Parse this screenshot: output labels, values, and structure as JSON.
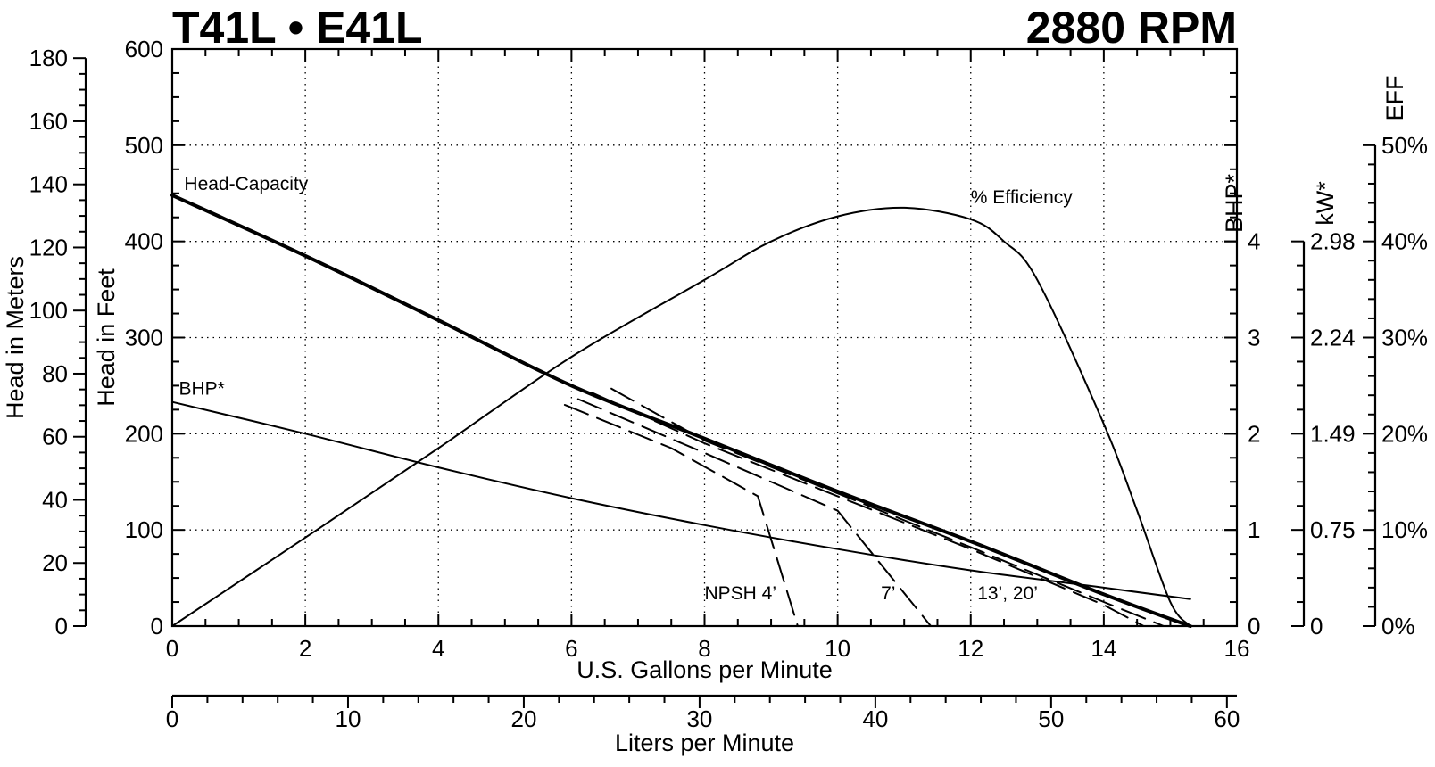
{
  "header": {
    "title_left": "T41L • E41L",
    "title_right": "2880 RPM"
  },
  "chart_data": {
    "type": "line",
    "title": "T41L • E41L",
    "subtitle": "2880 RPM",
    "xlabel": "U.S. Gallons per Minute",
    "x2label": "Liters per Minute",
    "ylabel": "Head in Feet",
    "y2label": "Head in Meters",
    "bhp_label": "BHP*",
    "kw_label": "kW*",
    "eff_label": "EFF",
    "xlim": [
      0,
      16
    ],
    "ylim": [
      0,
      600
    ],
    "grid": true,
    "x_ticks": [
      "0",
      "2",
      "4",
      "6",
      "8",
      "10",
      "12",
      "14",
      "16"
    ],
    "y_ticks": [
      "0",
      "100",
      "200",
      "300",
      "400",
      "500",
      "600"
    ],
    "meters_ticks": [
      "0",
      "20",
      "40",
      "60",
      "80",
      "100",
      "120",
      "140",
      "160",
      "180"
    ],
    "lpm_ticks": [
      "0",
      "10",
      "20",
      "30",
      "40",
      "50",
      "60"
    ],
    "bhp_ticks": [
      "0",
      "1",
      "2",
      "3",
      "4"
    ],
    "kw_ticks": [
      "0",
      "0.75",
      "1.49",
      "2.24",
      "2.98"
    ],
    "eff_ticks": [
      "0%",
      "10%",
      "20%",
      "30%",
      "40%",
      "50%"
    ],
    "series": [
      {
        "name": "Head-Capacity",
        "units": "feet",
        "x": [
          0,
          2,
          4,
          6,
          8,
          10,
          12,
          14,
          15.3
        ],
        "y": [
          448,
          385,
          318,
          250,
          195,
          140,
          88,
          33,
          0
        ]
      },
      {
        "name": "% Efficiency",
        "units": "percent",
        "x": [
          0,
          2,
          4,
          6,
          8,
          9,
          10,
          11,
          12,
          12.5,
          13,
          14,
          14.5,
          15,
          15.3
        ],
        "y": [
          0,
          9.2,
          18.5,
          28,
          36,
          40,
          42.6,
          43.5,
          42.3,
          40,
          36,
          21,
          12,
          2.5,
          0
        ]
      },
      {
        "name": "BHP*",
        "units": "bhp",
        "x": [
          0,
          2,
          4,
          6,
          8,
          10,
          12,
          14,
          15.3
        ],
        "y": [
          2.33,
          2.0,
          1.65,
          1.33,
          1.05,
          0.8,
          0.58,
          0.4,
          0.28
        ]
      },
      {
        "name": "NPSH 4’",
        "units": "feet",
        "x": [
          5.9,
          7.5,
          8.8,
          9.4
        ],
        "y": [
          230,
          185,
          135,
          0
        ]
      },
      {
        "name": "7’",
        "units": "feet",
        "x": [
          6.1,
          8,
          10,
          11.4
        ],
        "y": [
          236,
          180,
          120,
          0
        ]
      },
      {
        "name": "13’, 20’",
        "units": "feet",
        "x": [
          6.3,
          8,
          10,
          12,
          14,
          14.6
        ],
        "y": [
          243,
          190,
          135,
          80,
          22,
          0
        ]
      },
      {
        "name": "",
        "units": "feet",
        "x": [
          6.6,
          8,
          10,
          12,
          14,
          14.9
        ],
        "y": [
          247,
          193,
          138,
          82,
          25,
          0
        ]
      }
    ],
    "annotations": [
      "Head-Capacity",
      "% Efficiency",
      "BHP*",
      "NPSH 4’",
      "7’",
      "13’, 20’"
    ]
  }
}
